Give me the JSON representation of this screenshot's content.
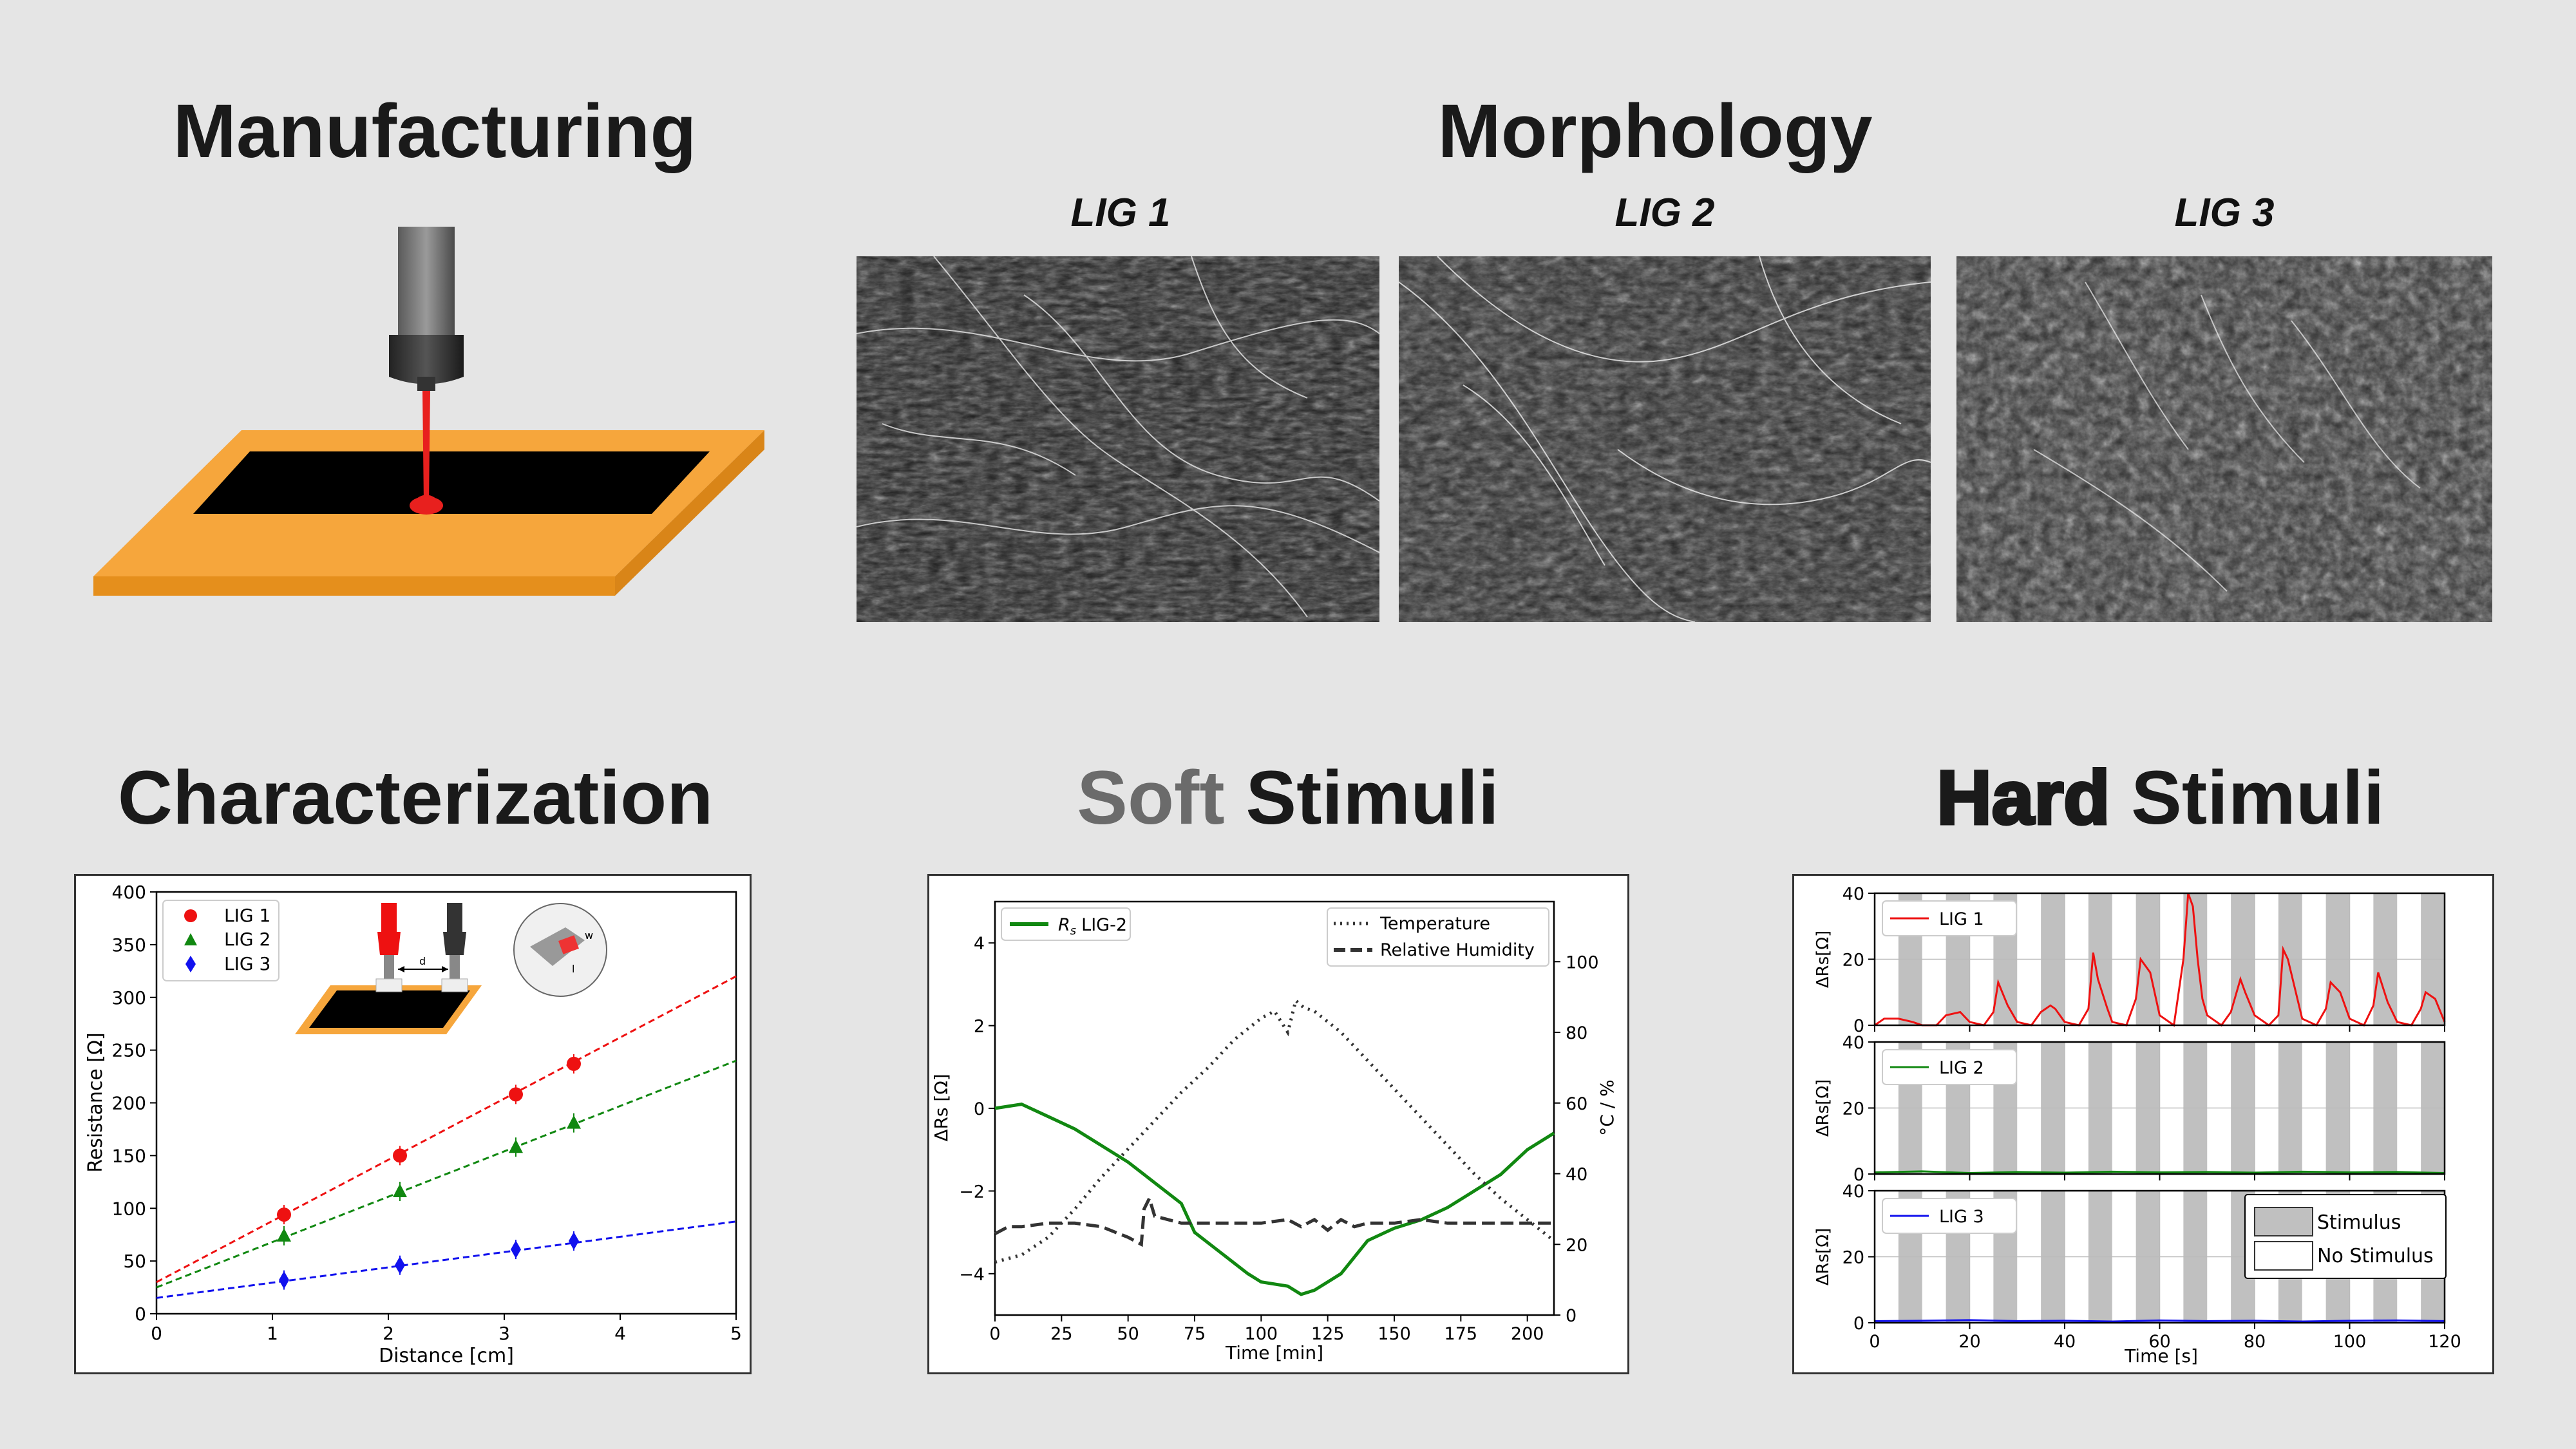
{
  "headings": {
    "manufacturing": "Manufacturing",
    "morphology": "Morphology",
    "characterization": "Characterization",
    "soft_word": "Soft",
    "soft_rest": "Stimuli",
    "hard_word": "Hard",
    "hard_rest": "Stimuli"
  },
  "sem_labels": [
    "LIG 1",
    "LIG 2",
    "LIG 3"
  ],
  "colors": {
    "background": "#e5e5e5",
    "substrate": "#f6a63c",
    "laser": "#e8201e",
    "soft_word": "#6b6b6b"
  },
  "char_panel": {
    "inset_gap_label": "d",
    "inset_w_label": "w",
    "inset_l_label": "l"
  },
  "soft_panel": {
    "left_legend": "LIG-2",
    "left_legend_prefix": "R",
    "left_legend_sub": "s",
    "right_ylabel": "°C / %"
  },
  "hard_panel": {
    "stim_legend": [
      "Stimulus",
      "No Stimulus"
    ]
  },
  "chart_data": [
    {
      "type": "scatter",
      "xlabel": "Distance [cm]",
      "ylabel": "Resistance [Ω]",
      "xlim": [
        0,
        5
      ],
      "ylim": [
        0,
        400
      ],
      "xticks": [
        0,
        1,
        2,
        3,
        4,
        5
      ],
      "yticks": [
        0,
        50,
        100,
        150,
        200,
        250,
        300,
        350,
        400
      ],
      "legend_position": "top-left",
      "series": [
        {
          "name": "LIG 1",
          "color": "#ee1111",
          "marker": "circle",
          "x": [
            1.1,
            2.1,
            3.1,
            3.6
          ],
          "y": [
            94,
            150,
            208,
            237
          ],
          "fit": [
            30,
            58
          ]
        },
        {
          "name": "LIG 2",
          "color": "#118811",
          "marker": "triangle",
          "x": [
            1.1,
            2.1,
            3.1,
            3.6
          ],
          "y": [
            74,
            116,
            158,
            181
          ],
          "fit": [
            25,
            43
          ]
        },
        {
          "name": "LIG 3",
          "color": "#1111ee",
          "marker": "diamond",
          "x": [
            1.1,
            2.1,
            3.1,
            3.6
          ],
          "y": [
            32,
            46,
            61,
            69
          ],
          "fit": [
            15,
            14.5
          ]
        }
      ]
    },
    {
      "type": "line",
      "xlabel": "Time [min]",
      "ylabel_left": "ΔRs [Ω]",
      "xlim": [
        0,
        210
      ],
      "ylim_left": [
        -5,
        5
      ],
      "ylim_right": [
        0,
        117
      ],
      "xticks": [
        0,
        25,
        50,
        75,
        100,
        125,
        150,
        175,
        200
      ],
      "yticks_left": [
        -4,
        -2,
        0,
        2,
        4
      ],
      "yticks_right": [
        0,
        20,
        40,
        60,
        80,
        100
      ],
      "series": [
        {
          "name": "LIG-2",
          "axis": "left",
          "color": "#118811",
          "style": "solid",
          "x": [
            0,
            10,
            20,
            30,
            40,
            50,
            60,
            70,
            75,
            85,
            95,
            100,
            110,
            115,
            120,
            130,
            140,
            150,
            160,
            170,
            180,
            190,
            200,
            210
          ],
          "y": [
            0,
            0.1,
            -0.2,
            -0.5,
            -0.9,
            -1.3,
            -1.8,
            -2.3,
            -3.0,
            -3.5,
            -4.0,
            -4.2,
            -4.3,
            -4.5,
            -4.4,
            -4.0,
            -3.2,
            -2.9,
            -2.7,
            -2.4,
            -2.0,
            -1.6,
            -1.0,
            -0.6
          ]
        },
        {
          "name": "Temperature",
          "axis": "right",
          "color": "#333333",
          "style": "dotted",
          "x": [
            0,
            10,
            20,
            30,
            40,
            50,
            60,
            70,
            80,
            90,
            100,
            105,
            110,
            113,
            116,
            120,
            130,
            140,
            150,
            160,
            170,
            180,
            190,
            200,
            210
          ],
          "y": [
            15,
            17,
            22,
            30,
            39,
            47,
            55,
            63,
            70,
            78,
            84,
            86,
            80,
            89,
            87,
            86,
            80,
            72,
            64,
            56,
            48,
            40,
            33,
            27,
            21
          ]
        },
        {
          "name": "Relative Humidity",
          "axis": "right",
          "color": "#333333",
          "style": "dashed",
          "x": [
            0,
            5,
            10,
            20,
            30,
            40,
            50,
            55,
            56,
            58,
            60,
            65,
            70,
            80,
            90,
            100,
            110,
            115,
            120,
            125,
            130,
            135,
            140,
            150,
            160,
            170,
            180,
            190,
            200,
            210
          ],
          "y": [
            23,
            25,
            25,
            26,
            26,
            25,
            22,
            20,
            30,
            33,
            28,
            27,
            26,
            26,
            26,
            26,
            27,
            25,
            27,
            24,
            27,
            25,
            26,
            26,
            27,
            26,
            26,
            26,
            26,
            26
          ]
        }
      ]
    },
    {
      "type": "line",
      "xlabel": "Time [s]",
      "ylabel": "ΔRs[Ω]",
      "xlim": [
        0,
        120
      ],
      "ylim": [
        0,
        40
      ],
      "xticks": [
        0,
        20,
        40,
        60,
        80,
        100,
        120
      ],
      "yticks": [
        0,
        20,
        40
      ],
      "stimulus_windows": [
        [
          5,
          10
        ],
        [
          15,
          20
        ],
        [
          25,
          30
        ],
        [
          35,
          40
        ],
        [
          45,
          50
        ],
        [
          55,
          60
        ],
        [
          65,
          70
        ],
        [
          75,
          80
        ],
        [
          85,
          90
        ],
        [
          95,
          100
        ],
        [
          105,
          110
        ],
        [
          115,
          120
        ]
      ],
      "subplots": [
        {
          "name": "LIG 1",
          "color": "#ee1111",
          "x": [
            0,
            2,
            5,
            8,
            10,
            13,
            15,
            18,
            20,
            23,
            25,
            26,
            28,
            30,
            33,
            35,
            37,
            38,
            40,
            43,
            45,
            46,
            47,
            49,
            50,
            53,
            55,
            56,
            58,
            60,
            63,
            65,
            66,
            67,
            68,
            69,
            70,
            73,
            75,
            77,
            78,
            80,
            83,
            85,
            86,
            87,
            89,
            90,
            93,
            95,
            96,
            98,
            100,
            103,
            105,
            106,
            108,
            110,
            113,
            115,
            116,
            118,
            120
          ],
          "y": [
            0,
            2,
            2,
            1,
            0,
            0,
            3,
            4,
            1,
            0,
            4,
            13,
            6,
            1,
            0,
            4,
            6,
            5,
            1,
            0,
            5,
            22,
            14,
            5,
            1,
            0,
            8,
            20,
            16,
            3,
            0,
            20,
            40,
            36,
            20,
            8,
            3,
            0,
            4,
            14,
            10,
            3,
            0,
            3,
            23,
            20,
            8,
            2,
            0,
            5,
            13,
            10,
            2,
            0,
            6,
            16,
            7,
            1,
            0,
            5,
            10,
            8,
            1
          ]
        },
        {
          "name": "LIG 2",
          "color": "#118811",
          "x": [
            0,
            10,
            20,
            30,
            40,
            50,
            60,
            70,
            80,
            90,
            100,
            110,
            120
          ],
          "y": [
            0.5,
            0.8,
            0.3,
            0.6,
            0.4,
            0.7,
            0.5,
            0.6,
            0.4,
            0.7,
            0.5,
            0.6,
            0.3
          ]
        },
        {
          "name": "LIG 3",
          "color": "#1111ee",
          "x": [
            0,
            10,
            20,
            30,
            40,
            50,
            60,
            70,
            80,
            90,
            100,
            110,
            120
          ],
          "y": [
            0.5,
            0.6,
            0.8,
            0.5,
            0.6,
            0.4,
            0.7,
            0.5,
            0.6,
            0.4,
            0.6,
            0.7,
            0.5
          ]
        }
      ]
    }
  ]
}
